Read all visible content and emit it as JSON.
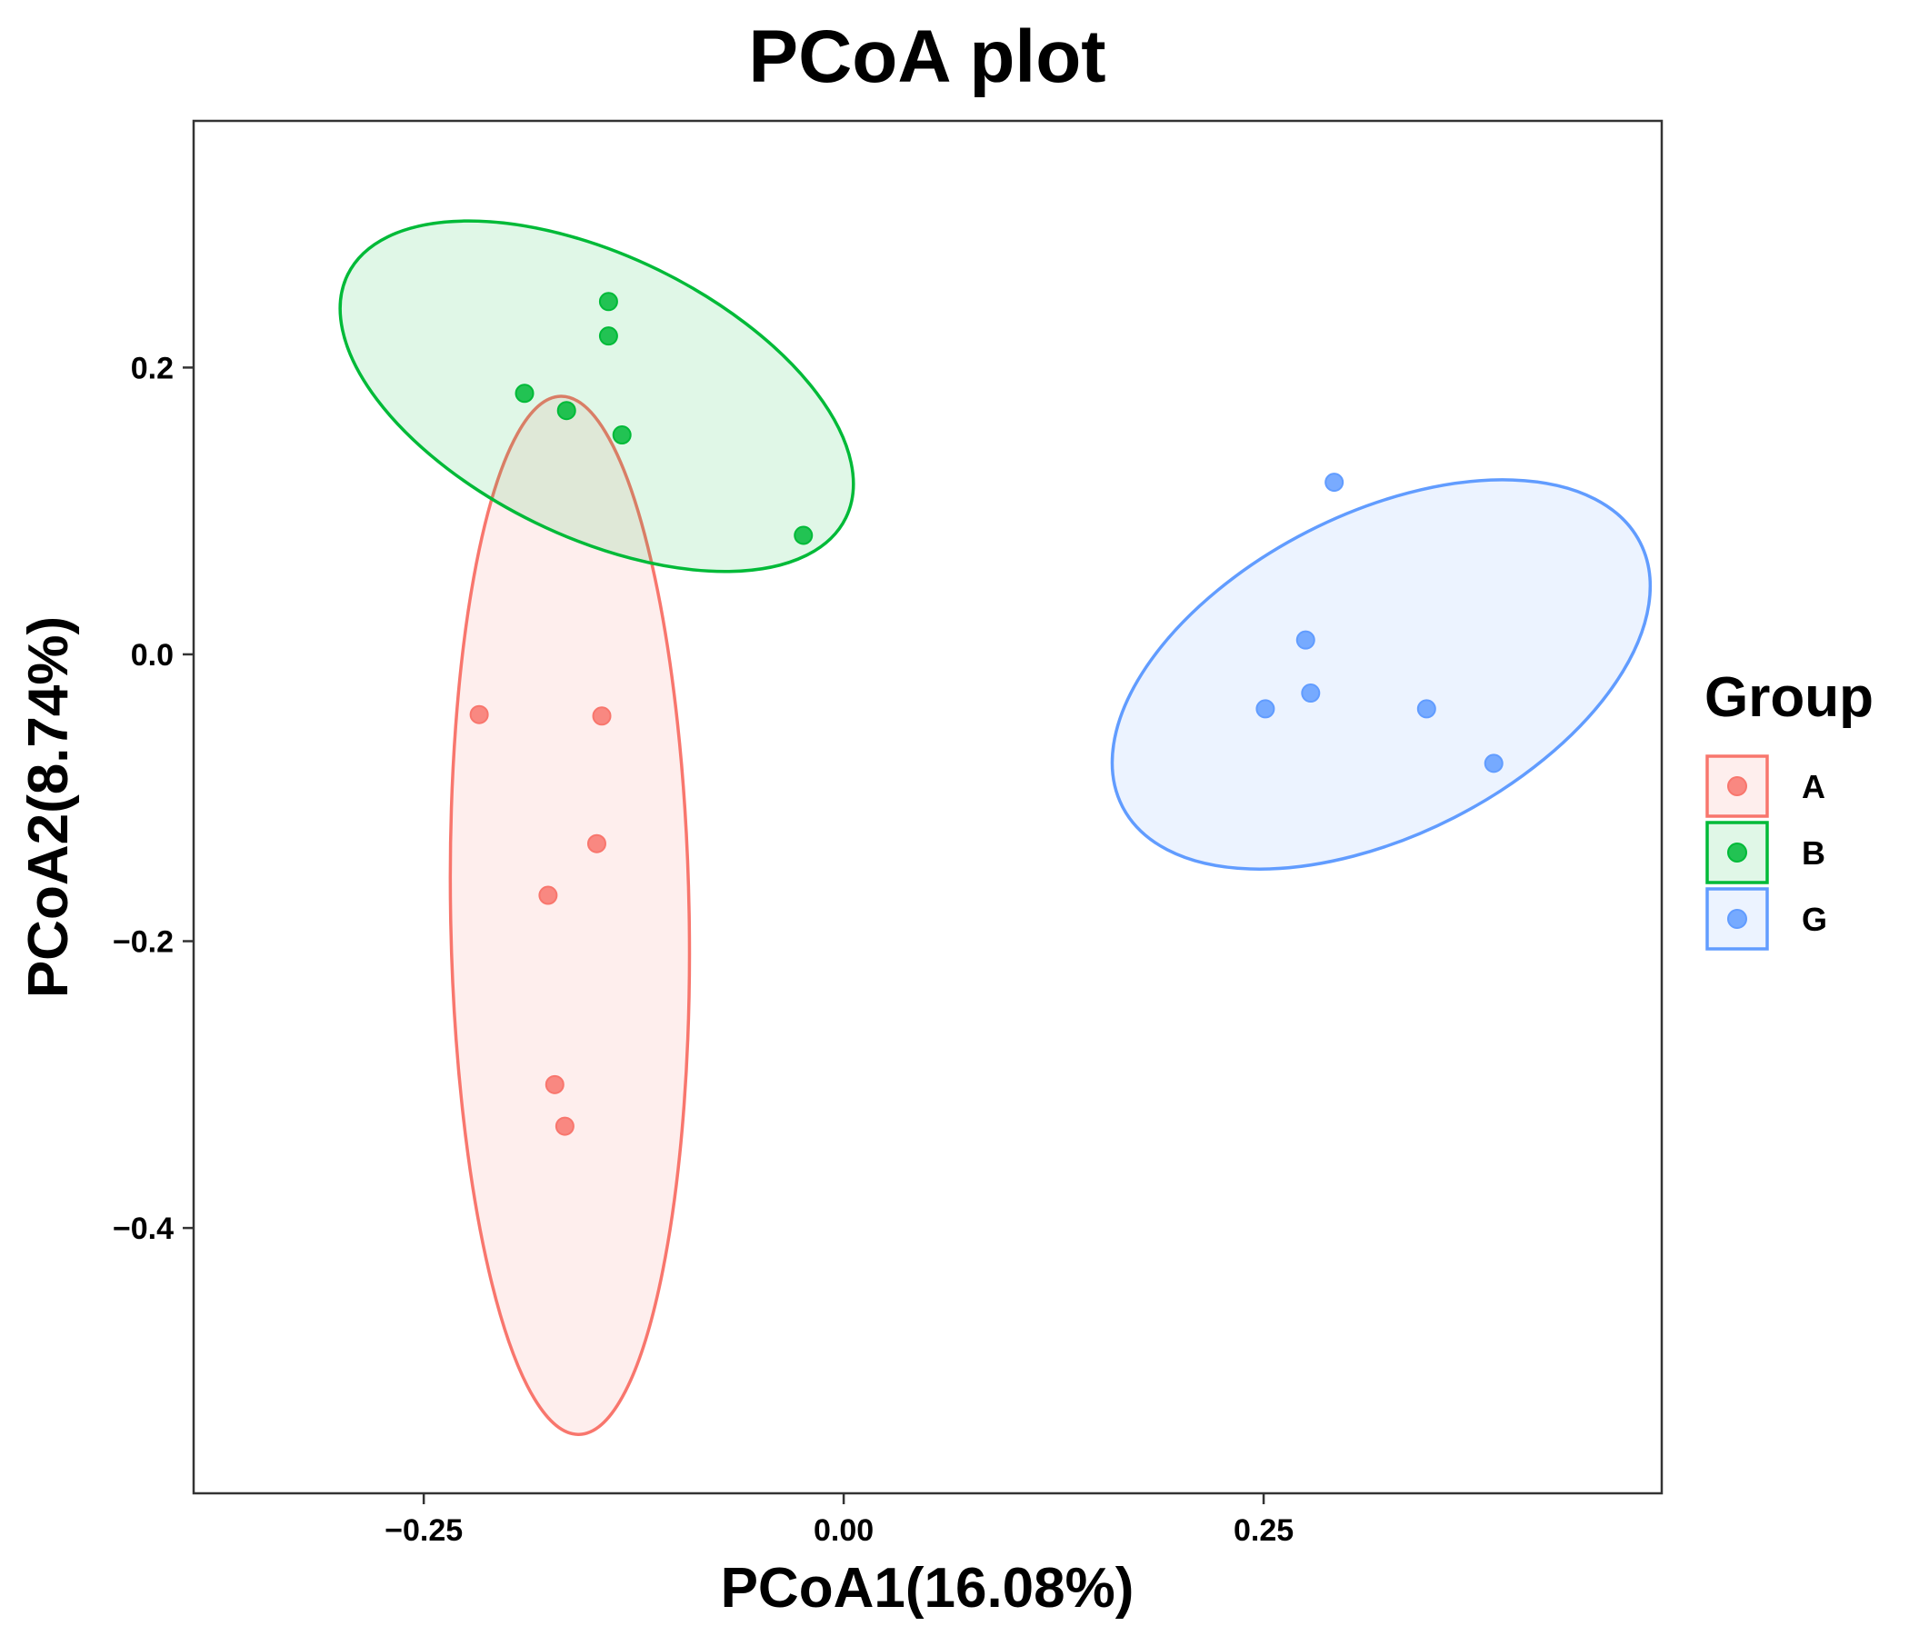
{
  "chart_data": {
    "type": "scatter",
    "title": "PCoA plot",
    "xlabel": "PCoA1(16.08%)",
    "ylabel": "PCoA2(8.74%)",
    "xlim": [
      -0.387,
      0.487
    ],
    "ylim": [
      -0.585,
      0.372
    ],
    "xticks": [
      -0.25,
      0.0,
      0.25
    ],
    "xtick_labels": [
      "−0.25",
      "0.00",
      "0.25"
    ],
    "yticks": [
      -0.4,
      -0.2,
      0.0,
      0.2
    ],
    "ytick_labels": [
      "−0.4",
      "−0.2",
      "0.0",
      "0.2"
    ],
    "grid": false,
    "legend": {
      "title": "Group",
      "position": "right"
    },
    "series": [
      {
        "name": "A",
        "color": "#F8766D",
        "points": [
          [
            -0.217,
            -0.042
          ],
          [
            -0.144,
            -0.043
          ],
          [
            -0.147,
            -0.132
          ],
          [
            -0.176,
            -0.168
          ],
          [
            -0.172,
            -0.3
          ],
          [
            -0.166,
            -0.329
          ]
        ],
        "ellipse": {
          "cx": -0.163,
          "cy": -0.182,
          "rx": 0.071,
          "ry": 0.362,
          "angle": 1.0
        }
      },
      {
        "name": "B",
        "color": "#00BA38",
        "points": [
          [
            -0.14,
            0.246
          ],
          [
            -0.14,
            0.222
          ],
          [
            -0.19,
            0.182
          ],
          [
            -0.165,
            0.17
          ],
          [
            -0.132,
            0.153
          ],
          [
            -0.024,
            0.083
          ]
        ],
        "ellipse": {
          "cx": -0.147,
          "cy": 0.18,
          "rx": 0.165,
          "ry": 0.098,
          "angle": -26.0
        }
      },
      {
        "name": "G",
        "color": "#619CFF",
        "points": [
          [
            0.292,
            0.12
          ],
          [
            0.275,
            0.01
          ],
          [
            0.278,
            -0.027
          ],
          [
            0.251,
            -0.038
          ],
          [
            0.347,
            -0.038
          ],
          [
            0.387,
            -0.076
          ]
        ],
        "ellipse": {
          "cx": 0.32,
          "cy": -0.014,
          "rx": 0.173,
          "ry": 0.112,
          "angle": 27.0
        }
      }
    ]
  }
}
